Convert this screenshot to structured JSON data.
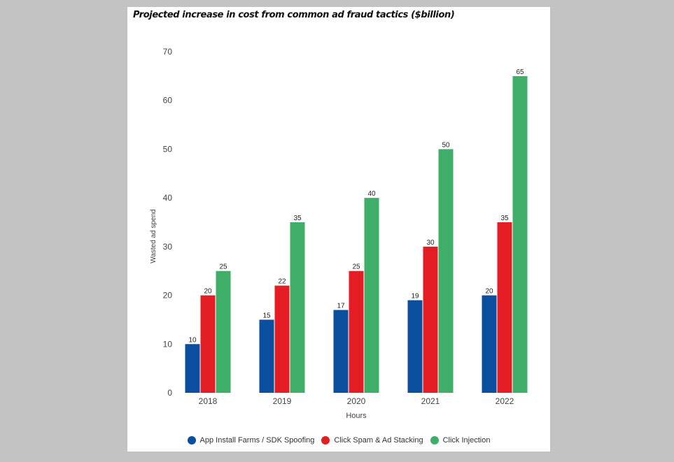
{
  "chart_data": {
    "type": "bar",
    "title": "Projected increase in cost from common ad fraud tactics ($billion)",
    "xlabel": "Hours",
    "ylabel": "Wasted ad spend",
    "ylim": [
      0,
      70
    ],
    "yticks": [
      0,
      10,
      20,
      30,
      40,
      50,
      60,
      70
    ],
    "categories": [
      "2018",
      "2019",
      "2020",
      "2021",
      "2022"
    ],
    "series": [
      {
        "name": "App Install Farms / SDK Spoofing",
        "color": "#0a4f9e",
        "values": [
          10,
          15,
          17,
          19,
          20
        ]
      },
      {
        "name": "Click Spam & Ad Stacking",
        "color": "#e31d23",
        "values": [
          20,
          22,
          25,
          30,
          35
        ]
      },
      {
        "name": "Click Injection",
        "color": "#3fae69",
        "values": [
          25,
          35,
          40,
          50,
          65
        ]
      }
    ],
    "grid": false,
    "legend": "bottom"
  }
}
